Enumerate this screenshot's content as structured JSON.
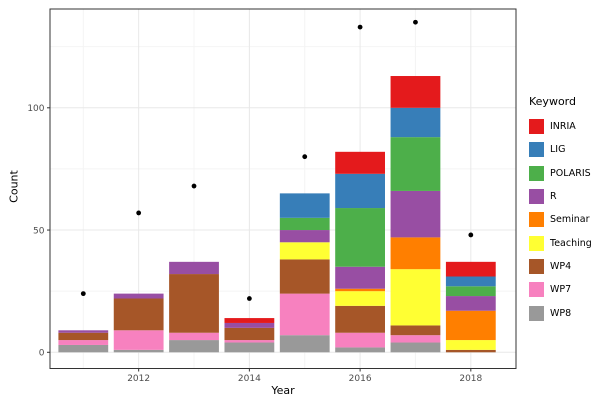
{
  "chart_data": {
    "type": "bar",
    "stacked": true,
    "xlabel": "Year",
    "ylabel": "Count",
    "legend_title": "Keyword",
    "legend_position": "right",
    "grid": true,
    "categories": [
      2011,
      2012,
      2013,
      2014,
      2015,
      2016,
      2017,
      2018
    ],
    "x_ticks": [
      2012,
      2014,
      2016,
      2018
    ],
    "y_ticks": [
      0,
      50,
      100
    ],
    "y_minor": [
      25,
      75,
      125
    ],
    "ylim": [
      0,
      140
    ],
    "series": [
      {
        "name": "INRIA",
        "color": "#E41A1C",
        "values": [
          0,
          0,
          0,
          2,
          0,
          9,
          13,
          6
        ]
      },
      {
        "name": "LIG",
        "color": "#377EB8",
        "values": [
          0,
          0,
          0,
          0,
          10,
          14,
          12,
          4
        ]
      },
      {
        "name": "POLARIS",
        "color": "#4DAF4A",
        "values": [
          0,
          0,
          0,
          0,
          5,
          24,
          22,
          4
        ]
      },
      {
        "name": "R",
        "color": "#984EA3",
        "values": [
          1,
          2,
          5,
          2,
          5,
          9,
          19,
          6
        ]
      },
      {
        "name": "Seminar",
        "color": "#FF7F00",
        "values": [
          0,
          0,
          0,
          0,
          0,
          1,
          13,
          12
        ]
      },
      {
        "name": "Teaching",
        "color": "#FFFF33",
        "values": [
          0,
          0,
          0,
          0,
          7,
          6,
          23,
          4
        ]
      },
      {
        "name": "WP4",
        "color": "#A65628",
        "values": [
          3,
          13,
          24,
          5,
          14,
          11,
          4,
          1
        ]
      },
      {
        "name": "WP7",
        "color": "#F781BF",
        "values": [
          2,
          8,
          3,
          1,
          17,
          6,
          3,
          0
        ]
      },
      {
        "name": "WP8",
        "color": "#999999",
        "values": [
          3,
          1,
          5,
          4,
          7,
          2,
          4,
          0
        ]
      }
    ],
    "stack_order_bottom_to_top": [
      "WP8",
      "WP7",
      "WP4",
      "Teaching",
      "Seminar",
      "R",
      "POLARIS",
      "LIG",
      "INRIA"
    ],
    "bar_totals": [
      9,
      24,
      37,
      14,
      65,
      82,
      113,
      37
    ],
    "points": {
      "name": "yearly-dots",
      "color": "#000000",
      "values": [
        24,
        57,
        68,
        22,
        80,
        133,
        135,
        48
      ]
    },
    "appearance": {
      "background": "#ffffff",
      "panel_background": "#ffffff",
      "grid_major": "#e8e8e8",
      "grid_minor": "#f4f4f4",
      "border": "#333333",
      "tick_label_color": "#4d4d4d",
      "point_color": "#000000"
    }
  }
}
